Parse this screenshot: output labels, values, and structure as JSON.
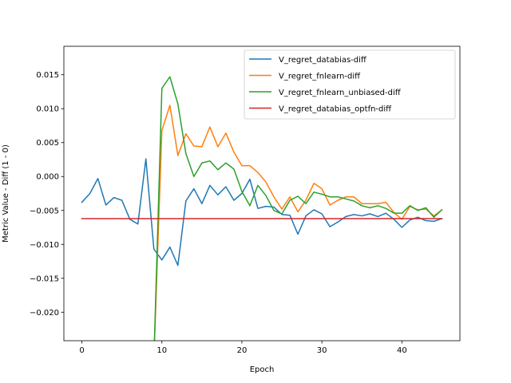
{
  "chart_data": {
    "type": "line",
    "title": "",
    "xlabel": "Epoch",
    "ylabel": "Metric Value - Diff (1 - 0)",
    "xlim": [
      -2.25,
      47.25
    ],
    "ylim": [
      -0.0242,
      0.0192
    ],
    "xticks": [
      0,
      10,
      20,
      30,
      40
    ],
    "yticks": [
      -0.02,
      -0.015,
      -0.01,
      -0.005,
      0.0,
      0.005,
      0.01,
      0.015
    ],
    "ytick_labels": [
      "−0.020",
      "−0.015",
      "−0.010",
      "−0.005",
      "0.000",
      "0.005",
      "0.010",
      "0.015"
    ],
    "grid": false,
    "legend_position": "top-right",
    "x": [
      0,
      1,
      2,
      3,
      4,
      5,
      6,
      7,
      8,
      9,
      10,
      11,
      12,
      13,
      14,
      15,
      16,
      17,
      18,
      19,
      20,
      21,
      22,
      23,
      24,
      25,
      26,
      27,
      28,
      29,
      30,
      31,
      32,
      33,
      34,
      35,
      36,
      37,
      38,
      39,
      40,
      41,
      42,
      43,
      44,
      45
    ],
    "series": [
      {
        "name": "V_regret_databias-diff",
        "color": "#1f77b4",
        "values": [
          -0.0038,
          -0.0025,
          -0.0003,
          -0.0042,
          -0.0031,
          -0.0035,
          -0.0063,
          -0.007,
          0.0026,
          -0.0107,
          -0.0123,
          -0.0104,
          -0.0131,
          -0.0036,
          -0.0018,
          -0.004,
          -0.0013,
          -0.0027,
          -0.0015,
          -0.0035,
          -0.0025,
          -0.0004,
          -0.0047,
          -0.0044,
          -0.0045,
          -0.0056,
          -0.0057,
          -0.0085,
          -0.0058,
          -0.0049,
          -0.0055,
          -0.0074,
          -0.0067,
          -0.0059,
          -0.0056,
          -0.0058,
          -0.0055,
          -0.0059,
          -0.0054,
          -0.0063,
          -0.0075,
          -0.0064,
          -0.006,
          -0.0065,
          -0.0066,
          -0.0062
        ]
      },
      {
        "name": "V_regret_fnlearn-diff",
        "color": "#ff7f0e",
        "values": [
          null,
          null,
          null,
          null,
          null,
          null,
          null,
          null,
          null,
          -0.027,
          0.0068,
          0.0105,
          0.0031,
          0.0063,
          0.0045,
          0.0044,
          0.0073,
          0.0044,
          0.0064,
          0.0036,
          0.0016,
          0.0016,
          0.0006,
          -0.0008,
          -0.003,
          -0.0048,
          -0.003,
          -0.0052,
          -0.0035,
          -0.001,
          -0.0018,
          -0.0042,
          -0.0035,
          -0.003,
          -0.003,
          -0.004,
          -0.004,
          -0.004,
          -0.0038,
          -0.0053,
          -0.0063,
          -0.0044,
          -0.0049,
          -0.0048,
          -0.0058,
          -0.0049
        ]
      },
      {
        "name": "V_regret_fnlearn_unbiased-diff",
        "color": "#2ca02c",
        "values": [
          null,
          null,
          null,
          null,
          null,
          null,
          null,
          null,
          null,
          -0.027,
          0.013,
          0.0147,
          0.0107,
          0.0034,
          0.0,
          0.002,
          0.0023,
          0.001,
          0.002,
          0.0011,
          -0.0022,
          -0.0043,
          -0.0013,
          -0.0028,
          -0.005,
          -0.0055,
          -0.0035,
          -0.0029,
          -0.004,
          -0.0023,
          -0.0026,
          -0.003,
          -0.003,
          -0.0033,
          -0.0036,
          -0.0043,
          -0.0046,
          -0.0043,
          -0.0047,
          -0.0054,
          -0.0054,
          -0.0043,
          -0.005,
          -0.0046,
          -0.006,
          -0.0049
        ]
      },
      {
        "name": "V_regret_databias_optfn-diff",
        "color": "#d62728",
        "values": [
          -0.0062,
          -0.0062,
          -0.0062,
          -0.0062,
          -0.0062,
          -0.0062,
          -0.0062,
          -0.0062,
          -0.0062,
          -0.0062,
          -0.0062,
          -0.0062,
          -0.0062,
          -0.0062,
          -0.0062,
          -0.0062,
          -0.0062,
          -0.0062,
          -0.0062,
          -0.0062,
          -0.0062,
          -0.0062,
          -0.0062,
          -0.0062,
          -0.0062,
          -0.0062,
          -0.0062,
          -0.0062,
          -0.0062,
          -0.0062,
          -0.0062,
          -0.0062,
          -0.0062,
          -0.0062,
          -0.0062,
          -0.0062,
          -0.0062,
          -0.0062,
          -0.0062,
          -0.0062,
          -0.0062,
          -0.0062,
          -0.0062,
          -0.0062,
          -0.0062,
          -0.0062
        ]
      }
    ]
  }
}
